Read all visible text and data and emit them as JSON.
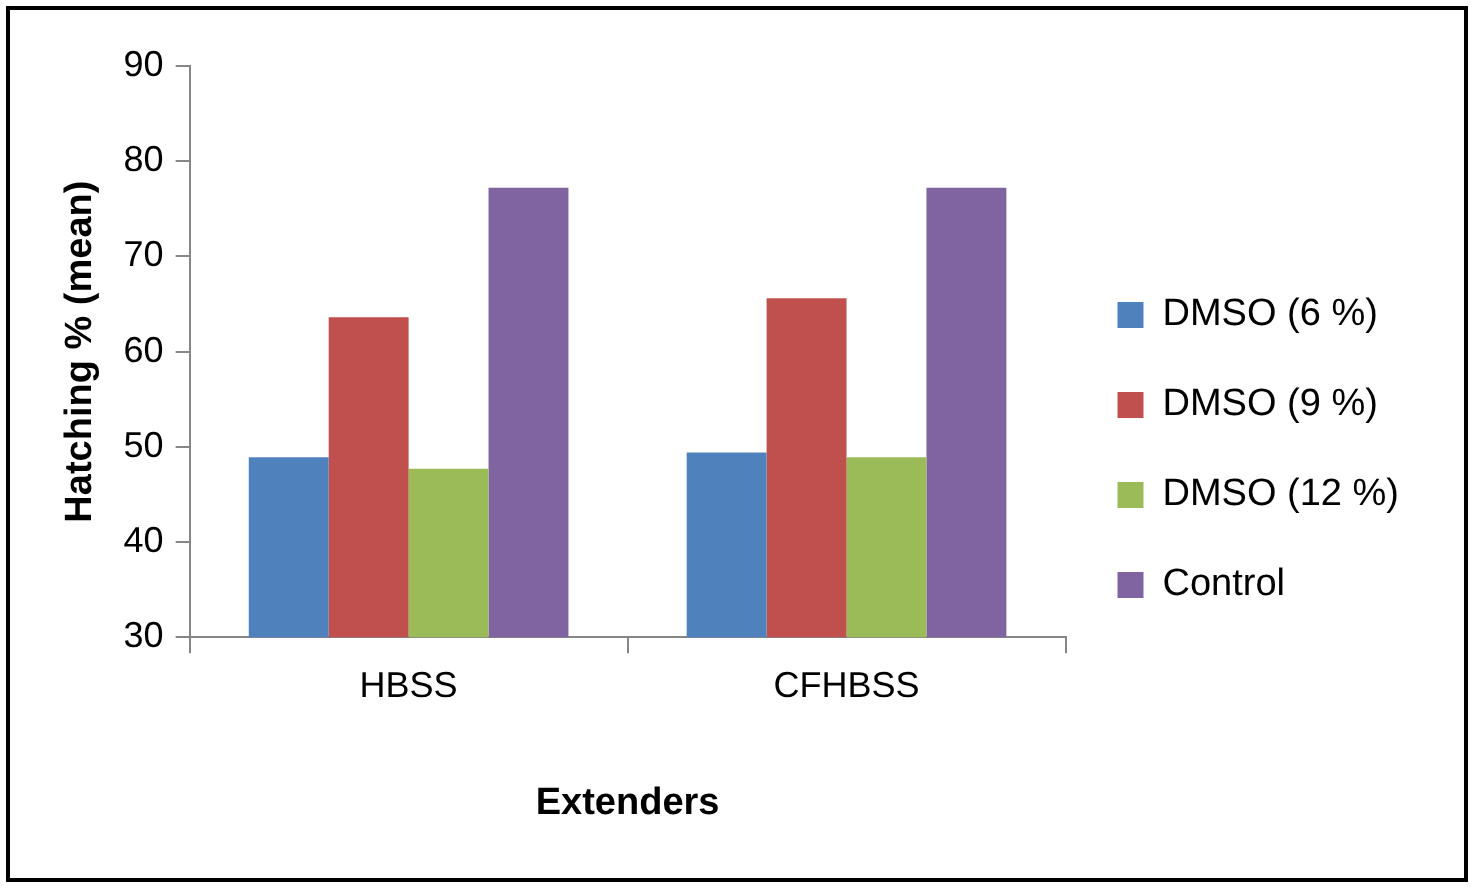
{
  "chart_data": {
    "type": "bar",
    "xlabel": "Extenders",
    "ylabel": "Hatching % (mean)",
    "categories": [
      "HBSS",
      "CFHBSS"
    ],
    "series": [
      {
        "name": "DMSO (6 %)",
        "color": "#4f81bd",
        "values": [
          48.9,
          49.4
        ]
      },
      {
        "name": "DMSO (9 %)",
        "color": "#c0504d",
        "values": [
          63.6,
          65.6
        ]
      },
      {
        "name": "DMSO (12 %)",
        "color": "#9bbb59",
        "values": [
          47.7,
          48.9
        ]
      },
      {
        "name": "Control",
        "color": "#8064a2",
        "values": [
          77.2,
          77.2
        ]
      }
    ],
    "ylim": [
      30,
      90
    ],
    "yticks": [
      30,
      40,
      50,
      60,
      70,
      80,
      90
    ],
    "grid": false,
    "legend": "right"
  }
}
